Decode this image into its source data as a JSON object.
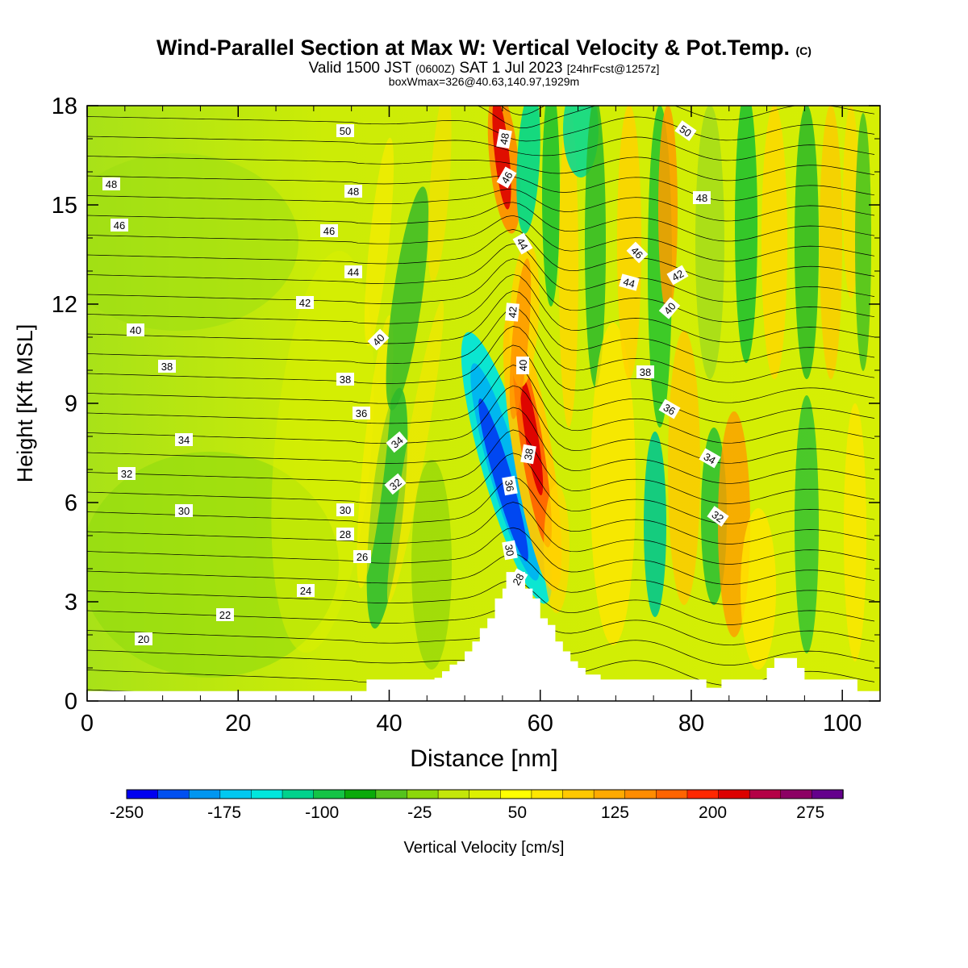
{
  "title": {
    "main": "Wind-Parallel Section at Max W: Vertical Velocity & Pot.Temp.",
    "copyright": "(C)",
    "valid_prefix": "Valid 1500 JST",
    "valid_z": "(0600Z)",
    "valid_date": "SAT 1 Jul 2023",
    "forecast": "[24hrFcst@1257z]",
    "boxwmax": "boxWmax=326@40.63,140.97,1929m"
  },
  "chart_data": {
    "type": "heatmap",
    "xlabel": "Distance [nm]",
    "ylabel": "Height [Kft MSL]",
    "xlim": [
      0,
      105
    ],
    "ylim": [
      0,
      18
    ],
    "x_ticks": [
      0,
      20,
      40,
      60,
      80,
      100
    ],
    "y_ticks": [
      0,
      3,
      6,
      9,
      12,
      15,
      18
    ],
    "colorbar": {
      "label": "Vertical Velocity [cm/s]",
      "min": -250,
      "max": 300,
      "step": 25,
      "tick_labels": [
        "-250",
        "-175",
        "-100",
        "-25",
        "50",
        "125",
        "200",
        "275"
      ],
      "colors": [
        "#0000f0",
        "#0050f0",
        "#0096f0",
        "#00c8f0",
        "#00e6dc",
        "#00d28c",
        "#14c346",
        "#0aaa0a",
        "#55c31e",
        "#8cd70a",
        "#c3e60a",
        "#dcf000",
        "#ffff00",
        "#ffe600",
        "#ffc800",
        "#ffaa00",
        "#ff8c00",
        "#ff6400",
        "#ff2800",
        "#dc0000",
        "#b40046",
        "#8c0064",
        "#64008c"
      ]
    },
    "terrain": [
      [
        0,
        0.3
      ],
      [
        36,
        0.3
      ],
      [
        37,
        0.65
      ],
      [
        41,
        0.65
      ],
      [
        46,
        0.7
      ],
      [
        47,
        0.9
      ],
      [
        48,
        1.1
      ],
      [
        49,
        1.2
      ],
      [
        50,
        1.5
      ],
      [
        51,
        1.8
      ],
      [
        52,
        2.2
      ],
      [
        53,
        2.5
      ],
      [
        54,
        3.1
      ],
      [
        55,
        3.4
      ],
      [
        55.5,
        3.9
      ],
      [
        57,
        3.9
      ],
      [
        58,
        3.4
      ],
      [
        59,
        3.1
      ],
      [
        60,
        2.5
      ],
      [
        61,
        2.3
      ],
      [
        62,
        1.8
      ],
      [
        63,
        1.5
      ],
      [
        64,
        1.2
      ],
      [
        65,
        1.0
      ],
      [
        66,
        0.8
      ],
      [
        68,
        0.65
      ],
      [
        81,
        0.65
      ],
      [
        82,
        0.4
      ],
      [
        83,
        0.4
      ],
      [
        84,
        0.65
      ],
      [
        89,
        0.65
      ],
      [
        90,
        1.0
      ],
      [
        91,
        1.3
      ],
      [
        93,
        1.3
      ],
      [
        94,
        1.0
      ],
      [
        95,
        0.65
      ],
      [
        101,
        0.65
      ],
      [
        102,
        0.3
      ],
      [
        104,
        0.3
      ],
      [
        105,
        0.65
      ]
    ],
    "theta_contour_labels": [
      "20",
      "22",
      "24",
      "26",
      "28",
      "28",
      "30",
      "30",
      "30",
      "32",
      "32",
      "32",
      "34",
      "34",
      "34",
      "36",
      "36",
      "36",
      "38",
      "38",
      "38",
      "38",
      "40",
      "40",
      "40",
      "40",
      "42",
      "42",
      "42",
      "44",
      "44",
      "44",
      "46",
      "46",
      "46",
      "46",
      "48",
      "48",
      "48",
      "48",
      "50",
      "50"
    ]
  }
}
